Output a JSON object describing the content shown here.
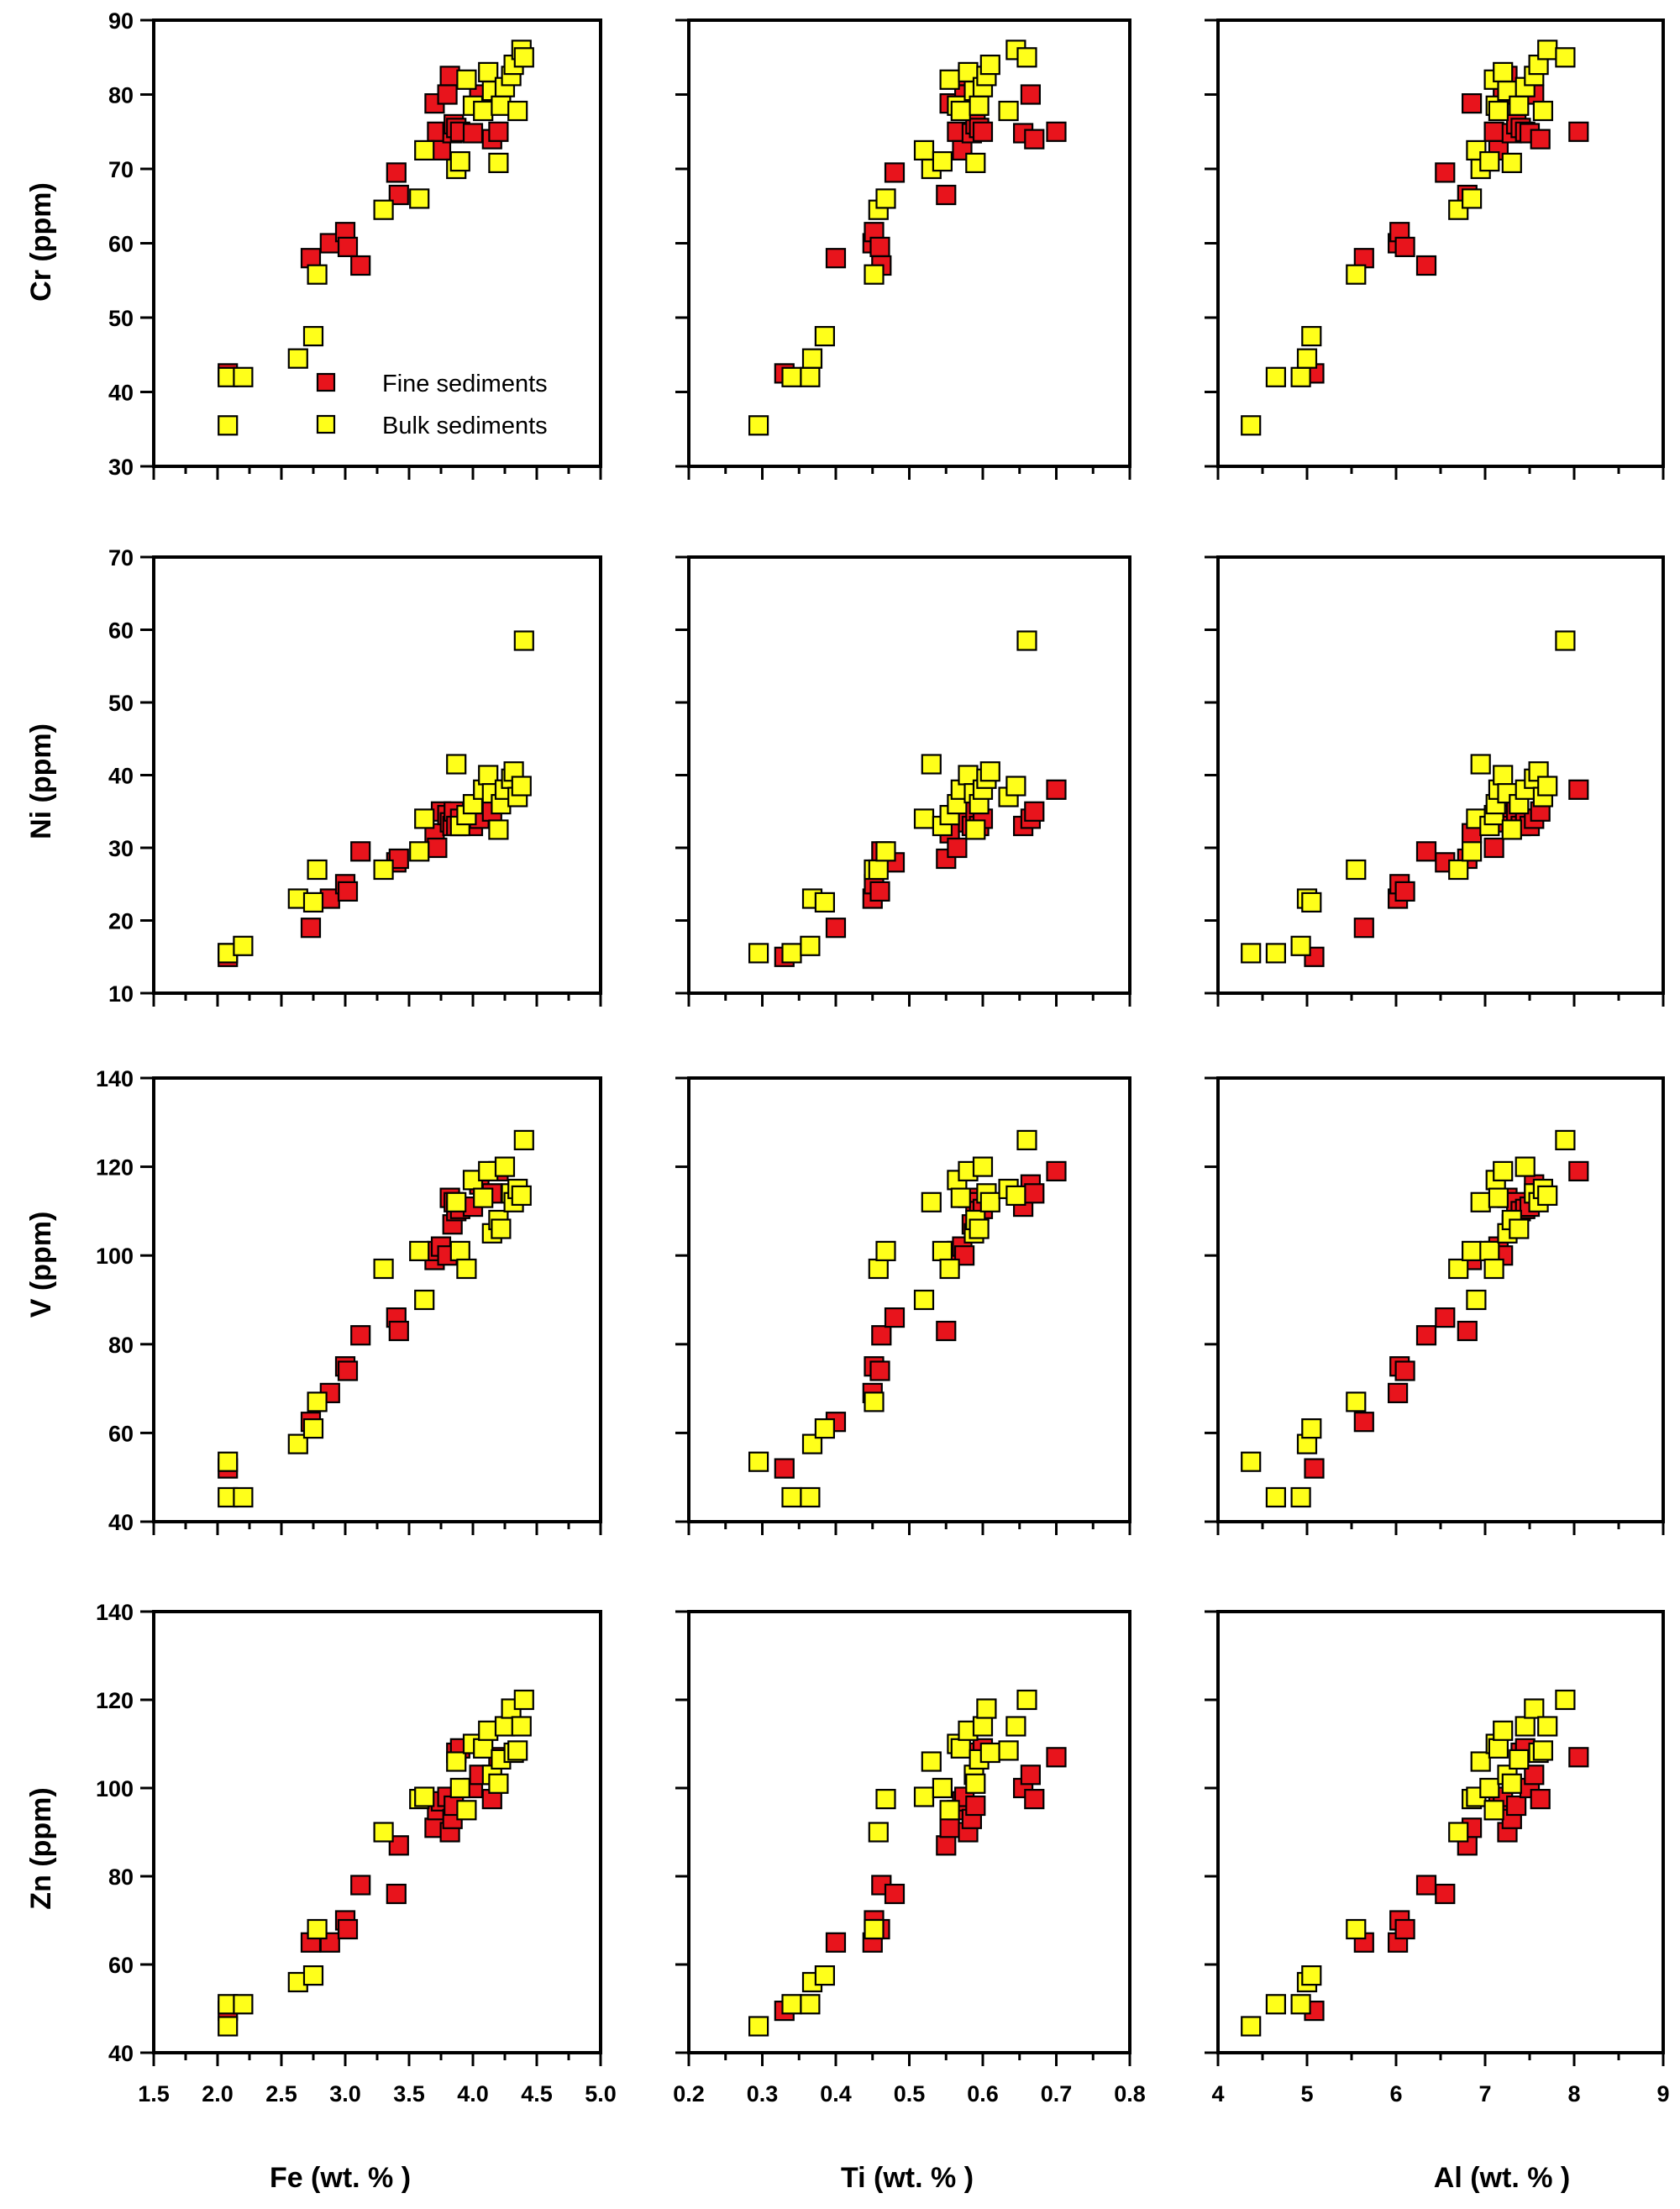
{
  "chart_data": {
    "type": "scatter",
    "grid": "4x3 scatter matrix",
    "legend": {
      "placement": "inside lower-right of top-left panel",
      "entries": [
        {
          "label": "Fine sediments",
          "color": "#e8141c"
        },
        {
          "label": "Bulk sediments",
          "color": "#ffff1a"
        }
      ]
    },
    "x_axes": [
      {
        "key": "Fe",
        "label": "Fe (wt. % )",
        "xlim": [
          1.5,
          5.0
        ],
        "major_step": 0.5,
        "minor_step": 0.25,
        "tick_labels": [
          "1.5",
          "2.0",
          "2.5",
          "3.0",
          "3.5",
          "4.0",
          "4.5",
          "5.0"
        ]
      },
      {
        "key": "Ti",
        "label": "Ti (wt. % )",
        "xlim": [
          0.2,
          0.8
        ],
        "major_step": 0.1,
        "minor_step": 0.05,
        "tick_labels": [
          "0.2",
          "0.3",
          "0.4",
          "0.5",
          "0.6",
          "0.7",
          "0.8"
        ]
      },
      {
        "key": "Al",
        "label": "Al (wt. % )",
        "xlim": [
          4,
          9
        ],
        "major_step": 1,
        "minor_step": 0.5,
        "tick_labels": [
          "4",
          "5",
          "6",
          "7",
          "8",
          "9"
        ]
      }
    ],
    "y_axes": [
      {
        "key": "Cr",
        "label": "Cr (ppm)",
        "ylim": [
          30,
          90
        ],
        "major_step": 10,
        "tick_labels": [
          "30",
          "40",
          "50",
          "60",
          "70",
          "80",
          "90"
        ]
      },
      {
        "key": "Ni",
        "label": "Ni (ppm)",
        "ylim": [
          10,
          70
        ],
        "major_step": 10,
        "tick_labels": [
          "10",
          "20",
          "30",
          "40",
          "50",
          "60",
          "70"
        ]
      },
      {
        "key": "V",
        "label": "V (ppm)",
        "ylim": [
          40,
          140
        ],
        "major_step": 20,
        "tick_labels": [
          "40",
          "60",
          "80",
          "100",
          "120",
          "140"
        ]
      },
      {
        "key": "Zn",
        "label": "Zn (ppm)",
        "ylim": [
          40,
          140
        ],
        "major_step": 20,
        "tick_labels": [
          "40",
          "60",
          "80",
          "100",
          "120",
          "140"
        ]
      }
    ],
    "samples": {
      "fine": {
        "Fe": [
          2.08,
          2.73,
          2.88,
          3.0,
          3.02,
          3.12,
          3.4,
          3.42,
          3.7,
          3.72,
          3.75,
          3.8,
          3.82,
          3.84,
          3.85,
          3.87,
          3.9,
          4.0,
          4.05,
          4.15,
          4.2
        ],
        "Ti": [
          0.33,
          0.4,
          0.45,
          0.452,
          0.46,
          0.462,
          0.48,
          0.55,
          0.555,
          0.565,
          0.572,
          0.575,
          0.58,
          0.585,
          0.59,
          0.595,
          0.6,
          0.655,
          0.665,
          0.67,
          0.7
        ],
        "Al": [
          5.08,
          5.64,
          6.02,
          6.04,
          6.1,
          6.34,
          6.55,
          6.8,
          6.85,
          7.1,
          7.15,
          7.2,
          7.25,
          7.3,
          7.35,
          7.4,
          7.45,
          7.5,
          7.55,
          7.62,
          8.05
        ],
        "Cr": [
          42.5,
          58,
          60,
          61.5,
          59.5,
          57,
          69.5,
          66.5,
          78.8,
          75,
          72.5,
          80,
          82.5,
          74.8,
          76,
          75.5,
          75,
          74.8,
          80,
          74,
          75
        ],
        "Ni": [
          15,
          19,
          23,
          25,
          24,
          29.5,
          28,
          28.5,
          32,
          30,
          35,
          34.5,
          33.5,
          33,
          35,
          33,
          34,
          33,
          34,
          35,
          38
        ],
        "V": [
          52,
          62.5,
          69,
          75,
          74,
          82,
          86,
          83,
          99,
          101,
          102,
          100,
          113,
          107,
          112,
          110,
          110.5,
          111,
          116,
          114,
          119
        ],
        "Zn": [
          49.5,
          65,
          65,
          70,
          68,
          78,
          76,
          87,
          91,
          95,
          97,
          98,
          90,
          93,
          96,
          108,
          109,
          100,
          103,
          97.5,
          107
        ]
      },
      "bulk": {
        "Fe": [
          2.08,
          2.08,
          2.2,
          2.63,
          2.75,
          2.78,
          3.3,
          3.58,
          3.62,
          3.87,
          3.9,
          3.95,
          4.0,
          4.08,
          4.12,
          4.15,
          4.2,
          4.22,
          4.25,
          4.3,
          4.32,
          4.35,
          4.38,
          4.4
        ],
        "Ti": [
          0.295,
          0.34,
          0.365,
          0.368,
          0.385,
          0.452,
          0.458,
          0.468,
          0.52,
          0.53,
          0.545,
          0.555,
          0.565,
          0.57,
          0.58,
          0.588,
          0.59,
          0.595,
          0.6,
          0.605,
          0.61,
          0.635,
          0.645,
          0.66
        ],
        "Al": [
          4.37,
          4.65,
          4.93,
          5.0,
          5.05,
          5.55,
          6.7,
          6.85,
          6.9,
          6.95,
          7.05,
          7.1,
          7.12,
          7.15,
          7.2,
          7.25,
          7.3,
          7.38,
          7.45,
          7.55,
          7.6,
          7.65,
          7.7,
          7.9
        ],
        "Cr": [
          35.5,
          42,
          42,
          44.5,
          47.5,
          55.8,
          64.5,
          66,
          72.5,
          70,
          71,
          82,
          78.5,
          77.8,
          83,
          80.5,
          70.8,
          78.5,
          81,
          82.5,
          84,
          77.8,
          86,
          85
        ],
        "Ni": [
          15.5,
          15.5,
          16.5,
          23,
          22.5,
          27,
          27,
          29.5,
          34,
          41.5,
          33,
          34.5,
          36,
          38,
          40,
          37.5,
          32.5,
          36,
          38,
          39.5,
          40.5,
          37,
          38.5,
          58.5
        ],
        "V": [
          53.5,
          45.5,
          45.5,
          57.5,
          61,
          67,
          97,
          101,
          90,
          112,
          101,
          97,
          117,
          113,
          119,
          105,
          108,
          106,
          120,
          114,
          112,
          115,
          113.5,
          126
        ],
        "Zn": [
          46,
          51,
          51,
          56,
          57.5,
          68,
          90,
          97.5,
          98,
          106,
          100,
          95,
          110,
          109,
          113,
          103,
          101,
          106.5,
          114,
          118,
          108,
          108.5,
          114,
          120
        ]
      }
    }
  }
}
